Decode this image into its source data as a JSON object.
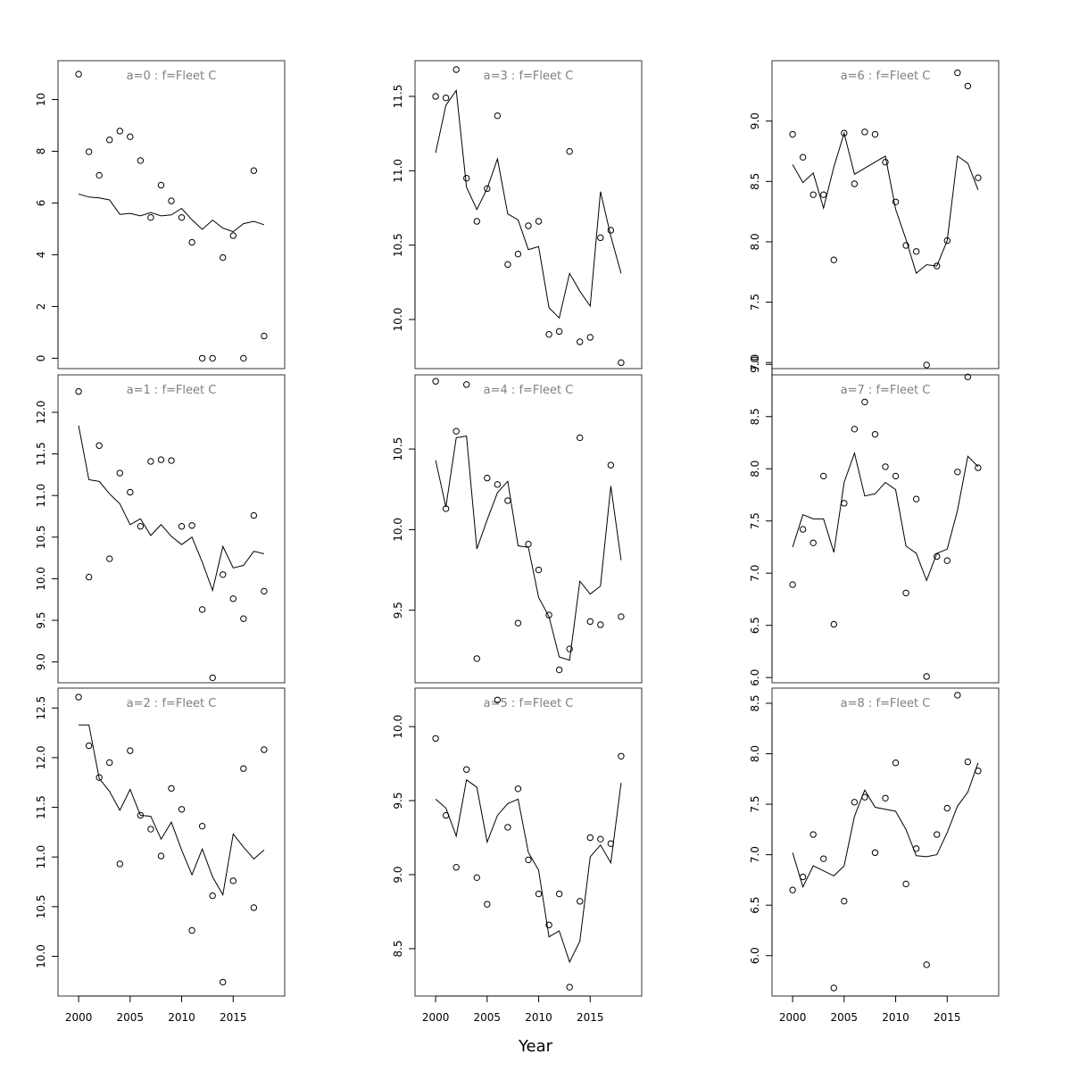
{
  "figure": {
    "xlabel": "Year"
  },
  "chart_data": [
    {
      "type": "line",
      "title": "a=0  :  f=Fleet C",
      "xlim": [
        1998,
        2020
      ],
      "ylim": [
        -0.4,
        11.5
      ],
      "xticks": [
        2000,
        2005,
        2010,
        2015
      ],
      "yticks": [
        0,
        2,
        4,
        6,
        8,
        10
      ],
      "ytick_labels": [
        "0",
        "2",
        "4",
        "6",
        "8",
        "10"
      ],
      "x_axis_shown": false,
      "years": [
        2000,
        2001,
        2002,
        2003,
        2004,
        2005,
        2006,
        2007,
        2008,
        2009,
        2010,
        2011,
        2012,
        2013,
        2014,
        2015,
        2016,
        2017,
        2018
      ],
      "observed": [
        10.98,
        7.98,
        7.07,
        8.44,
        8.78,
        8.56,
        7.64,
        5.44,
        6.69,
        6.08,
        5.44,
        4.48,
        0.0,
        0.0,
        3.89,
        4.74,
        0.0,
        7.25,
        0.86
      ],
      "fitted": [
        6.35,
        6.23,
        6.2,
        6.12,
        5.56,
        5.6,
        5.5,
        5.63,
        5.5,
        5.54,
        5.79,
        5.35,
        4.98,
        5.34,
        5.03,
        4.89,
        5.2,
        5.29,
        5.16
      ]
    },
    {
      "type": "line",
      "title": "a=1  :  f=Fleet C",
      "xlim": [
        1998,
        2020
      ],
      "ylim": [
        8.75,
        12.45
      ],
      "xticks": [
        2000,
        2005,
        2010,
        2015
      ],
      "yticks": [
        9.0,
        9.5,
        10.0,
        10.5,
        11.0,
        11.5,
        12.0
      ],
      "ytick_labels": [
        "9.0",
        "9.5",
        "10.0",
        "10.5",
        "11.0",
        "11.5",
        "12.0"
      ],
      "x_axis_shown": false,
      "years": [
        2000,
        2001,
        2002,
        2003,
        2004,
        2005,
        2006,
        2007,
        2008,
        2009,
        2010,
        2011,
        2012,
        2013,
        2014,
        2015,
        2016,
        2017,
        2018
      ],
      "observed": [
        12.25,
        10.02,
        11.6,
        10.24,
        11.27,
        11.04,
        10.63,
        11.41,
        11.43,
        11.42,
        10.63,
        10.64,
        9.63,
        8.81,
        10.05,
        9.76,
        9.52,
        10.76,
        9.85
      ],
      "fitted": [
        11.84,
        11.19,
        11.17,
        11.02,
        10.9,
        10.65,
        10.72,
        10.52,
        10.65,
        10.51,
        10.41,
        10.5,
        10.2,
        9.86,
        10.39,
        10.13,
        10.16,
        10.33,
        10.3
      ]
    },
    {
      "type": "line",
      "title": "a=2  :  f=Fleet C",
      "xlim": [
        1998,
        2020
      ],
      "ylim": [
        9.6,
        12.7
      ],
      "xticks": [
        2000,
        2005,
        2010,
        2015
      ],
      "yticks": [
        10.0,
        10.5,
        11.0,
        11.5,
        12.0,
        12.5
      ],
      "ytick_labels": [
        "10.0",
        "10.5",
        "11.0",
        "11.5",
        "12.0",
        "12.5"
      ],
      "x_axis_shown": true,
      "years": [
        2000,
        2001,
        2002,
        2003,
        2004,
        2005,
        2006,
        2007,
        2008,
        2009,
        2010,
        2011,
        2012,
        2013,
        2014,
        2015,
        2016,
        2017,
        2018
      ],
      "observed": [
        12.61,
        12.12,
        11.8,
        11.95,
        10.93,
        12.07,
        11.42,
        11.28,
        11.01,
        11.69,
        11.48,
        10.26,
        11.31,
        10.61,
        9.74,
        10.76,
        11.89,
        10.49,
        12.08
      ],
      "fitted": [
        12.33,
        12.33,
        11.79,
        11.66,
        11.47,
        11.68,
        11.42,
        11.41,
        11.18,
        11.35,
        11.07,
        10.82,
        11.08,
        10.8,
        10.62,
        11.23,
        11.1,
        10.98,
        11.07
      ]
    },
    {
      "type": "line",
      "title": "a=3  :  f=Fleet C",
      "xlim": [
        1998,
        2020
      ],
      "ylim": [
        9.67,
        11.74
      ],
      "xticks": [
        2000,
        2005,
        2010,
        2015
      ],
      "yticks": [
        10.0,
        10.5,
        11.0,
        11.5
      ],
      "ytick_labels": [
        "10.0",
        "10.5",
        "11.0",
        "11.5"
      ],
      "x_axis_shown": false,
      "years": [
        2000,
        2001,
        2002,
        2003,
        2004,
        2005,
        2006,
        2007,
        2008,
        2009,
        2010,
        2011,
        2012,
        2013,
        2014,
        2015,
        2016,
        2017,
        2018
      ],
      "observed": [
        11.5,
        11.49,
        11.68,
        10.95,
        10.66,
        10.88,
        11.37,
        10.37,
        10.44,
        10.63,
        10.66,
        9.9,
        9.92,
        11.13,
        9.85,
        9.88,
        10.55,
        10.6,
        9.71
      ],
      "fitted": [
        11.12,
        11.44,
        11.54,
        10.89,
        10.74,
        10.88,
        11.08,
        10.71,
        10.67,
        10.47,
        10.49,
        10.08,
        10.01,
        10.31,
        10.19,
        10.09,
        10.86,
        10.56,
        10.31
      ]
    },
    {
      "type": "line",
      "title": "a=4  :  f=Fleet C",
      "xlim": [
        1998,
        2020
      ],
      "ylim": [
        9.05,
        10.96
      ],
      "xticks": [
        2000,
        2005,
        2010,
        2015
      ],
      "yticks": [
        9.5,
        10.0,
        10.5
      ],
      "ytick_labels": [
        "9.5",
        "10.0",
        "10.5"
      ],
      "x_axis_shown": false,
      "years": [
        2000,
        2001,
        2002,
        2003,
        2004,
        2005,
        2006,
        2007,
        2008,
        2009,
        2010,
        2011,
        2012,
        2013,
        2014,
        2015,
        2016,
        2017,
        2018
      ],
      "observed": [
        10.92,
        10.13,
        10.61,
        10.9,
        9.2,
        10.32,
        10.28,
        10.18,
        9.42,
        9.91,
        9.75,
        9.47,
        9.13,
        9.26,
        10.57,
        9.43,
        9.41,
        10.4,
        9.46
      ],
      "fitted": [
        10.43,
        10.14,
        10.57,
        10.58,
        9.88,
        10.06,
        10.23,
        10.3,
        9.9,
        9.89,
        9.58,
        9.46,
        9.21,
        9.19,
        9.68,
        9.6,
        9.65,
        10.27,
        9.81
      ]
    },
    {
      "type": "line",
      "title": "a=5  :  f=Fleet C",
      "xlim": [
        1998,
        2020
      ],
      "ylim": [
        8.18,
        10.26
      ],
      "xticks": [
        2000,
        2005,
        2010,
        2015
      ],
      "yticks": [
        8.5,
        9.0,
        9.5,
        10.0
      ],
      "ytick_labels": [
        "8.5",
        "9.0",
        "9.5",
        "10.0"
      ],
      "x_axis_shown": true,
      "years": [
        2000,
        2001,
        2002,
        2003,
        2004,
        2005,
        2006,
        2007,
        2008,
        2009,
        2010,
        2011,
        2012,
        2013,
        2014,
        2015,
        2016,
        2017,
        2018
      ],
      "observed": [
        9.92,
        9.4,
        9.05,
        9.71,
        8.98,
        8.8,
        10.18,
        9.32,
        9.58,
        9.1,
        8.87,
        8.66,
        8.87,
        8.24,
        8.82,
        9.25,
        9.24,
        9.21,
        9.8
      ],
      "fitted": [
        9.51,
        9.45,
        9.26,
        9.64,
        9.59,
        9.22,
        9.4,
        9.48,
        9.51,
        9.15,
        9.03,
        8.58,
        8.62,
        8.41,
        8.55,
        9.12,
        9.2,
        9.08,
        9.62
      ]
    },
    {
      "type": "line",
      "title": "a=6  :  f=Fleet C",
      "xlim": [
        1998,
        2020
      ],
      "ylim": [
        6.95,
        9.5
      ],
      "xticks": [
        2000,
        2005,
        2010,
        2015
      ],
      "yticks": [
        7.0,
        7.5,
        8.0,
        8.5,
        9.0
      ],
      "ytick_labels": [
        "7.0",
        "7.5",
        "8.0",
        "8.5",
        "9.0"
      ],
      "x_axis_shown": false,
      "years": [
        2000,
        2001,
        2002,
        2003,
        2004,
        2005,
        2006,
        2007,
        2008,
        2009,
        2010,
        2011,
        2012,
        2013,
        2014,
        2015,
        2016,
        2017,
        2018
      ],
      "observed": [
        8.89,
        8.7,
        8.39,
        8.39,
        7.85,
        8.9,
        8.48,
        8.91,
        8.89,
        8.66,
        8.33,
        7.97,
        7.92,
        6.98,
        7.8,
        8.01,
        9.4,
        9.29,
        8.53
      ],
      "fitted": [
        8.64,
        8.49,
        8.57,
        8.28,
        8.62,
        8.9,
        8.56,
        8.61,
        8.66,
        8.71,
        8.27,
        8.02,
        7.74,
        7.81,
        7.8,
        8.01,
        8.71,
        8.65,
        8.43
      ]
    },
    {
      "type": "line",
      "title": "a=7  :  f=Fleet C",
      "xlim": [
        1998,
        2020
      ],
      "ylim": [
        5.95,
        8.9
      ],
      "xticks": [
        2000,
        2005,
        2010,
        2015
      ],
      "yticks": [
        6.0,
        6.5,
        7.0,
        7.5,
        8.0,
        8.5,
        9.0
      ],
      "ytick_labels": [
        "6.0",
        "6.5",
        "7.0",
        "7.5",
        "8.0",
        "8.5",
        "9.0"
      ],
      "x_axis_shown": false,
      "years": [
        2000,
        2001,
        2002,
        2003,
        2004,
        2005,
        2006,
        2007,
        2008,
        2009,
        2010,
        2011,
        2012,
        2013,
        2014,
        2015,
        2016,
        2017,
        2018
      ],
      "observed": [
        6.89,
        7.42,
        7.29,
        7.93,
        6.51,
        7.67,
        8.38,
        8.64,
        8.33,
        8.02,
        7.93,
        6.81,
        7.71,
        6.01,
        7.16,
        7.12,
        7.97,
        8.88,
        8.01
      ],
      "fitted": [
        7.25,
        7.56,
        7.52,
        7.52,
        7.2,
        7.87,
        8.15,
        7.74,
        7.76,
        7.87,
        7.8,
        7.26,
        7.19,
        6.93,
        7.19,
        7.23,
        7.6,
        8.12,
        8.02
      ]
    },
    {
      "type": "line",
      "title": "a=8  :  f=Fleet C",
      "xlim": [
        1998,
        2020
      ],
      "ylim": [
        5.6,
        8.65
      ],
      "xticks": [
        2000,
        2005,
        2010,
        2015
      ],
      "yticks": [
        6.0,
        6.5,
        7.0,
        7.5,
        8.0,
        8.5
      ],
      "ytick_labels": [
        "6.0",
        "6.5",
        "7.0",
        "7.5",
        "8.0",
        "8.5"
      ],
      "x_axis_shown": true,
      "years": [
        2000,
        2001,
        2002,
        2003,
        2004,
        2005,
        2006,
        2007,
        2008,
        2009,
        2010,
        2011,
        2012,
        2013,
        2014,
        2015,
        2016,
        2017,
        2018
      ],
      "observed": [
        6.65,
        6.78,
        7.2,
        6.96,
        5.68,
        6.54,
        7.52,
        7.57,
        7.02,
        7.56,
        7.91,
        6.71,
        7.06,
        5.91,
        7.2,
        7.46,
        8.58,
        7.92,
        7.83
      ],
      "fitted": [
        7.02,
        6.68,
        6.89,
        6.84,
        6.79,
        6.89,
        7.38,
        7.64,
        7.47,
        7.45,
        7.43,
        7.25,
        6.99,
        6.98,
        7.0,
        7.22,
        7.48,
        7.62,
        7.91
      ]
    }
  ]
}
